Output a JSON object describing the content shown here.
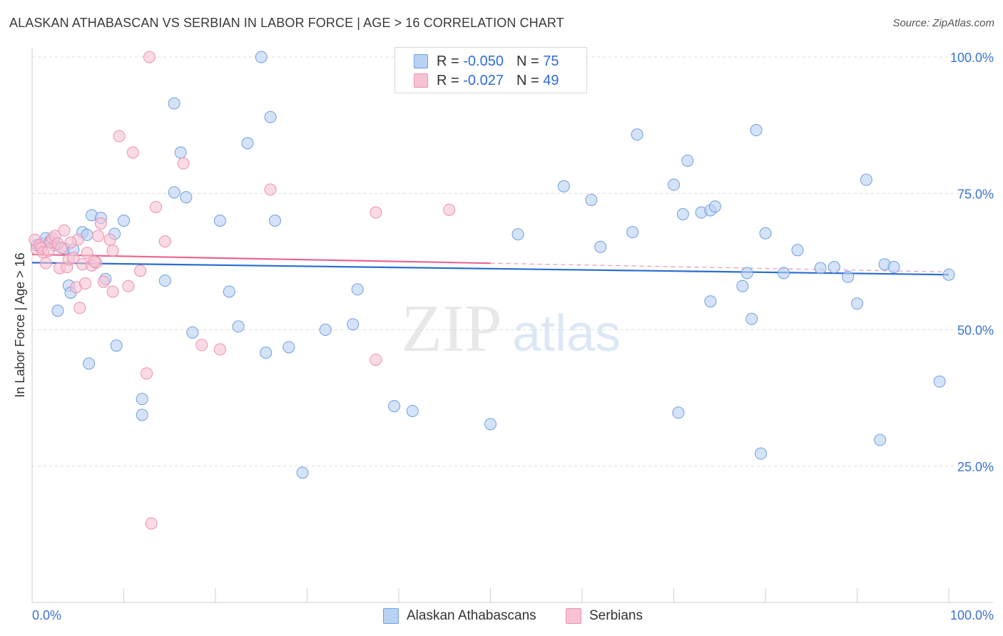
{
  "title": "ALASKAN ATHABASCAN VS SERBIAN IN LABOR FORCE | AGE > 16 CORRELATION CHART",
  "source": "Source: ZipAtlas.com",
  "legend": {
    "r_label": "R =",
    "n_label": "N =",
    "series": [
      {
        "r": "-0.050",
        "n": "75"
      },
      {
        "r": "-0.027",
        "n": "49"
      }
    ]
  },
  "watermark": {
    "zip": "ZIP",
    "atlas": "atlas"
  },
  "colors": {
    "blue_fill": "#b9d1f3",
    "blue_stroke": "#6f9fe0",
    "blue_line": "#2a6dd0",
    "pink_fill": "#f7c3d3",
    "pink_stroke": "#ec8fae",
    "pink_line": "#e8668f",
    "axis_label": "#3b74cf"
  },
  "chart_data": {
    "type": "scatter",
    "title": "ALASKAN ATHABASCAN VS SERBIAN IN LABOR FORCE | AGE > 16 CORRELATION CHART",
    "xlabel": "",
    "ylabel": "In Labor Force | Age > 16",
    "xlim": [
      0,
      100
    ],
    "ylim": [
      0,
      100
    ],
    "x_tick_labels": [
      "0.0%",
      "100.0%"
    ],
    "y_tick_labels": [
      "25.0%",
      "50.0%",
      "75.0%",
      "100.0%"
    ],
    "y_ticks": [
      25,
      50,
      75,
      100
    ],
    "grid": "horizontal dashed",
    "legend_position": "bottom-center",
    "series": [
      {
        "name": "Alaskan Athabascans",
        "color": "#6f9fe0",
        "trend": {
          "x": [
            0,
            100
          ],
          "y": [
            62.3,
            60.1
          ]
        },
        "points": [
          [
            0.5,
            65.5
          ],
          [
            1.0,
            65.8
          ],
          [
            1.5,
            66.8
          ],
          [
            2.0,
            66.3
          ],
          [
            2.5,
            65.5
          ],
          [
            3.5,
            64.9
          ],
          [
            4.5,
            64.7
          ],
          [
            5.5,
            67.9
          ],
          [
            6.0,
            67.4
          ],
          [
            6.5,
            71.0
          ],
          [
            7.5,
            70.5
          ],
          [
            8.0,
            59.3
          ],
          [
            9.0,
            67.6
          ],
          [
            10.0,
            70.0
          ],
          [
            2.8,
            53.5
          ],
          [
            4.0,
            58.1
          ],
          [
            4.2,
            56.8
          ],
          [
            6.2,
            43.8
          ],
          [
            9.2,
            47.1
          ],
          [
            12.0,
            37.3
          ],
          [
            12.0,
            34.4
          ],
          [
            14.5,
            59.0
          ],
          [
            15.5,
            91.5
          ],
          [
            16.2,
            82.5
          ],
          [
            15.5,
            75.2
          ],
          [
            16.8,
            74.3
          ],
          [
            17.5,
            49.5
          ],
          [
            20.5,
            70.0
          ],
          [
            21.5,
            57.0
          ],
          [
            22.5,
            50.6
          ],
          [
            23.5,
            84.2
          ],
          [
            25.0,
            100.0
          ],
          [
            25.5,
            45.8
          ],
          [
            26.0,
            89.0
          ],
          [
            26.5,
            70.0
          ],
          [
            28.0,
            46.8
          ],
          [
            29.5,
            23.8
          ],
          [
            32.0,
            50.0
          ],
          [
            35.0,
            51.0
          ],
          [
            35.5,
            57.4
          ],
          [
            39.5,
            36.0
          ],
          [
            41.5,
            35.1
          ],
          [
            50.0,
            32.7
          ],
          [
            53.0,
            67.5
          ],
          [
            58.0,
            76.3
          ],
          [
            61.0,
            73.8
          ],
          [
            62.0,
            65.2
          ],
          [
            65.5,
            67.9
          ],
          [
            66.0,
            85.8
          ],
          [
            70.5,
            34.8
          ],
          [
            70.0,
            76.6
          ],
          [
            71.0,
            71.2
          ],
          [
            71.5,
            81.0
          ],
          [
            73.0,
            71.5
          ],
          [
            74.0,
            71.9
          ],
          [
            74.5,
            72.6
          ],
          [
            74.0,
            55.2
          ],
          [
            77.5,
            58.0
          ],
          [
            78.0,
            60.4
          ],
          [
            78.5,
            52.0
          ],
          [
            79.0,
            86.6
          ],
          [
            79.5,
            27.3
          ],
          [
            80.0,
            67.7
          ],
          [
            82.0,
            60.4
          ],
          [
            83.5,
            64.6
          ],
          [
            86.0,
            61.3
          ],
          [
            87.5,
            61.5
          ],
          [
            89.0,
            59.7
          ],
          [
            90.0,
            54.8
          ],
          [
            91.0,
            77.5
          ],
          [
            92.5,
            29.8
          ],
          [
            93.0,
            62.0
          ],
          [
            94.0,
            61.5
          ],
          [
            99.0,
            40.5
          ],
          [
            100.0,
            60.1
          ]
        ]
      },
      {
        "name": "Serbians",
        "color": "#ec8fae",
        "trend": {
          "x": [
            0,
            100
          ],
          "y": [
            63.8,
            60.6
          ]
        },
        "points": [
          [
            0.3,
            66.5
          ],
          [
            0.5,
            64.8
          ],
          [
            0.8,
            65.5
          ],
          [
            1.0,
            65.0
          ],
          [
            1.2,
            64.2
          ],
          [
            1.5,
            62.2
          ],
          [
            1.8,
            64.5
          ],
          [
            2.0,
            66.0
          ],
          [
            2.2,
            66.8
          ],
          [
            2.5,
            67.2
          ],
          [
            2.8,
            65.8
          ],
          [
            3.0,
            61.3
          ],
          [
            3.2,
            65.0
          ],
          [
            3.5,
            68.2
          ],
          [
            3.8,
            61.5
          ],
          [
            4.0,
            62.9
          ],
          [
            4.5,
            63.2
          ],
          [
            4.8,
            57.8
          ],
          [
            5.0,
            66.5
          ],
          [
            5.2,
            54.0
          ],
          [
            5.5,
            62.0
          ],
          [
            5.8,
            58.5
          ],
          [
            6.0,
            64.1
          ],
          [
            6.5,
            61.8
          ],
          [
            7.0,
            62.3
          ],
          [
            7.2,
            67.2
          ],
          [
            7.5,
            69.5
          ],
          [
            7.8,
            58.8
          ],
          [
            8.5,
            66.5
          ],
          [
            8.8,
            64.5
          ],
          [
            8.8,
            57.0
          ],
          [
            9.5,
            85.5
          ],
          [
            10.5,
            58.0
          ],
          [
            11.0,
            82.5
          ],
          [
            11.8,
            60.8
          ],
          [
            12.5,
            42.0
          ],
          [
            12.8,
            100.0
          ],
          [
            13.0,
            14.5
          ],
          [
            13.5,
            72.5
          ],
          [
            14.5,
            66.2
          ],
          [
            16.5,
            80.5
          ],
          [
            18.5,
            47.2
          ],
          [
            20.5,
            46.4
          ],
          [
            26.0,
            75.7
          ],
          [
            37.5,
            71.5
          ],
          [
            37.5,
            44.5
          ],
          [
            45.5,
            72.0
          ],
          [
            4.2,
            66.0
          ],
          [
            6.8,
            62.5
          ]
        ]
      }
    ]
  }
}
